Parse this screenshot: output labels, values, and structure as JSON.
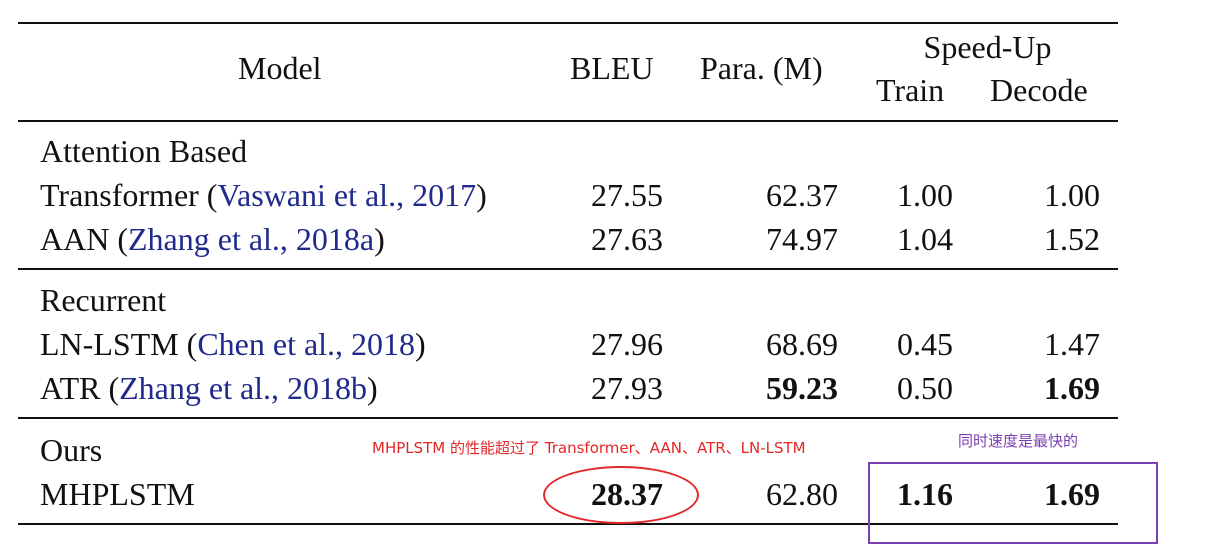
{
  "header": {
    "model": "Model",
    "bleu": "BLEU",
    "para": "Para. (M)",
    "speedup": "Speed-Up",
    "train": "Train",
    "decode": "Decode"
  },
  "groups": [
    {
      "title": "Attention Based",
      "rows": [
        {
          "name": "Transformer",
          "open": " (",
          "cite": "Vaswani et al., 2017",
          "close": ")",
          "bleu": "27.55",
          "para": "62.37",
          "train": "1.00",
          "decode": "1.00"
        },
        {
          "name": "AAN",
          "open": " (",
          "cite": "Zhang et al., 2018a",
          "close": ")",
          "bleu": "27.63",
          "para": "74.97",
          "train": "1.04",
          "decode": "1.52"
        }
      ]
    },
    {
      "title": "Recurrent",
      "rows": [
        {
          "name": "LN-LSTM",
          "open": " (",
          "cite": "Chen et al., 2018",
          "close": ")",
          "bleu": "27.96",
          "para": "68.69",
          "train": "0.45",
          "decode": "1.47"
        },
        {
          "name": "ATR",
          "open": " (",
          "cite": "Zhang et al., 2018b",
          "close": ")",
          "bleu": "27.93",
          "para": "59.23",
          "train": "0.50",
          "decode": "1.69"
        }
      ]
    },
    {
      "title": "Ours",
      "rows": [
        {
          "name": "MHPLSTM",
          "bleu": "28.37",
          "para": "62.80",
          "train": "1.16",
          "decode": "1.69"
        }
      ]
    }
  ],
  "annotations": {
    "red_note": "MHPLSTM 的性能超过了 Transformer、AAN、ATR、LN-LSTM",
    "purple_note": "同时速度是最快的",
    "red_color": "#e32626",
    "purple_color": "#7a3fb0"
  }
}
